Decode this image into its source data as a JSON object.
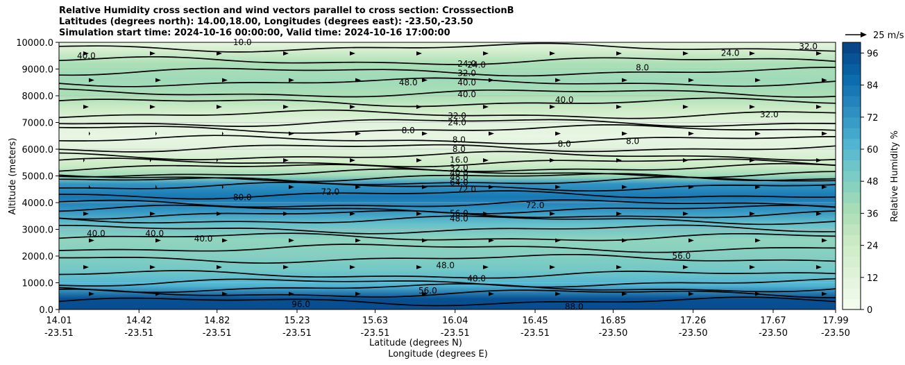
{
  "title_lines": [
    "Relative Humidity cross section and wind vectors parallel to cross section: CrosssectionB",
    "Latitudes (degrees north): 14.00,18.00, Longitudes (degrees east): -23.50,-23.50",
    "Simulation start time: 2024-10-16 00:00:00, Valid time: 2024-10-16 17:00:00"
  ],
  "chart_data": {
    "type": "contour",
    "title": "Relative Humidity cross section and wind vectors parallel to cross section: CrosssectionB",
    "ylabel": "Altitude (meters)",
    "xlabel_lines": [
      "Latitude (degrees N)",
      "Longitude (degrees E)"
    ],
    "colorbar_label": "Relative Humidity %",
    "ylim": [
      0,
      10000
    ],
    "xlim": [
      14.01,
      17.99
    ],
    "y_ticks": [
      "0.0",
      "1000.0",
      "2000.0",
      "3000.0",
      "4000.0",
      "5000.0",
      "6000.0",
      "7000.0",
      "8000.0",
      "9000.0",
      "10000.0"
    ],
    "x_ticks": [
      {
        "lat": "14.01",
        "lon": "-23.51"
      },
      {
        "lat": "14.42",
        "lon": "-23.51"
      },
      {
        "lat": "14.82",
        "lon": "-23.51"
      },
      {
        "lat": "15.23",
        "lon": "-23.51"
      },
      {
        "lat": "15.63",
        "lon": "-23.51"
      },
      {
        "lat": "16.04",
        "lon": "-23.51"
      },
      {
        "lat": "16.45",
        "lon": "-23.51"
      },
      {
        "lat": "16.85",
        "lon": "-23.50"
      },
      {
        "lat": "17.26",
        "lon": "-23.50"
      },
      {
        "lat": "17.67",
        "lon": "-23.50"
      },
      {
        "lat": "17.99",
        "lon": "-23.50"
      }
    ],
    "colorbar_ticks": [
      "0",
      "12",
      "24",
      "36",
      "48",
      "60",
      "72",
      "84",
      "96"
    ],
    "colorbar_range": [
      0,
      100
    ],
    "colorbar_colors": [
      "#f7fcf0",
      "#e0f3db",
      "#ccebc5",
      "#a8ddb5",
      "#7bccc4",
      "#4eb3d3",
      "#2b8cbe",
      "#0868ac",
      "#084081"
    ],
    "quiver_key": "25 m/s",
    "humidity_layers": [
      {
        "alt": 0,
        "rh": 96
      },
      {
        "alt": 400,
        "rh": 95
      },
      {
        "alt": 900,
        "rh": 62
      },
      {
        "alt": 1500,
        "rh": 52
      },
      {
        "alt": 2000,
        "rh": 48
      },
      {
        "alt": 2600,
        "rh": 44
      },
      {
        "alt": 3200,
        "rh": 56
      },
      {
        "alt": 3700,
        "rh": 72
      },
      {
        "alt": 4200,
        "rh": 82
      },
      {
        "alt": 4700,
        "rh": 72
      },
      {
        "alt": 5000,
        "rh": 40
      },
      {
        "alt": 5400,
        "rh": 24
      },
      {
        "alt": 6000,
        "rh": 12
      },
      {
        "alt": 6500,
        "rh": 8
      },
      {
        "alt": 7000,
        "rh": 12
      },
      {
        "alt": 7500,
        "rh": 24
      },
      {
        "alt": 8000,
        "rh": 36
      },
      {
        "alt": 8600,
        "rh": 40
      },
      {
        "alt": 9200,
        "rh": 36
      },
      {
        "alt": 9700,
        "rh": 20
      },
      {
        "alt": 10000,
        "rh": 10
      }
    ],
    "contour_labels": [
      {
        "text": "24.0",
        "lat": 16.1,
        "alt": 9200
      },
      {
        "text": "24.0",
        "lat": 16.15,
        "alt": 9150
      },
      {
        "text": "32.0",
        "lat": 16.1,
        "alt": 8850
      },
      {
        "text": "40.0",
        "lat": 16.1,
        "alt": 8500
      },
      {
        "text": "40.0",
        "lat": 16.1,
        "alt": 8050
      },
      {
        "text": "48.0",
        "lat": 15.8,
        "alt": 8500
      },
      {
        "text": "40.0",
        "lat": 16.6,
        "alt": 7850
      },
      {
        "text": "32.0",
        "lat": 16.05,
        "alt": 7250
      },
      {
        "text": "24.0",
        "lat": 16.05,
        "alt": 7000
      },
      {
        "text": "8.0",
        "lat": 15.8,
        "alt": 6700
      },
      {
        "text": "8.0",
        "lat": 16.06,
        "alt": 6350
      },
      {
        "text": "8.0",
        "lat": 16.06,
        "alt": 6000
      },
      {
        "text": "8.0",
        "lat": 16.6,
        "alt": 6200
      },
      {
        "text": "8.0",
        "lat": 16.95,
        "alt": 6300
      },
      {
        "text": "16.0",
        "lat": 16.06,
        "alt": 5600
      },
      {
        "text": "32.0",
        "lat": 16.06,
        "alt": 5300
      },
      {
        "text": "40.0",
        "lat": 16.06,
        "alt": 5100
      },
      {
        "text": "48.0",
        "lat": 16.06,
        "alt": 4950
      },
      {
        "text": "64.0",
        "lat": 16.06,
        "alt": 4750
      },
      {
        "text": "72.0",
        "lat": 16.1,
        "alt": 4500
      },
      {
        "text": "72.0",
        "lat": 15.4,
        "alt": 4400
      },
      {
        "text": "80.0",
        "lat": 14.95,
        "alt": 4200
      },
      {
        "text": "72.0",
        "lat": 16.45,
        "alt": 3900
      },
      {
        "text": "56.0",
        "lat": 16.06,
        "alt": 3600
      },
      {
        "text": "48.0",
        "lat": 16.06,
        "alt": 3400
      },
      {
        "text": "40.0",
        "lat": 14.2,
        "alt": 2850
      },
      {
        "text": "40.0",
        "lat": 14.5,
        "alt": 2850
      },
      {
        "text": "40.0",
        "lat": 14.75,
        "alt": 2650
      },
      {
        "text": "56.0",
        "lat": 17.2,
        "alt": 2000
      },
      {
        "text": "48.0",
        "lat": 15.99,
        "alt": 1650
      },
      {
        "text": "48.0",
        "lat": 16.15,
        "alt": 1150
      },
      {
        "text": "56.0",
        "lat": 15.9,
        "alt": 700
      },
      {
        "text": "96.0",
        "lat": 15.25,
        "alt": 200
      },
      {
        "text": "88.0",
        "lat": 16.65,
        "alt": 100
      },
      {
        "text": "10.0",
        "lat": 14.95,
        "alt": 10000
      },
      {
        "text": "40.0",
        "lat": 14.15,
        "alt": 9500
      },
      {
        "text": "24.0",
        "lat": 17.45,
        "alt": 9600
      },
      {
        "text": "32.0",
        "lat": 17.85,
        "alt": 9850
      },
      {
        "text": "32.0",
        "lat": 17.65,
        "alt": 7300
      },
      {
        "text": "8.0",
        "lat": 17.0,
        "alt": 9050
      }
    ]
  }
}
